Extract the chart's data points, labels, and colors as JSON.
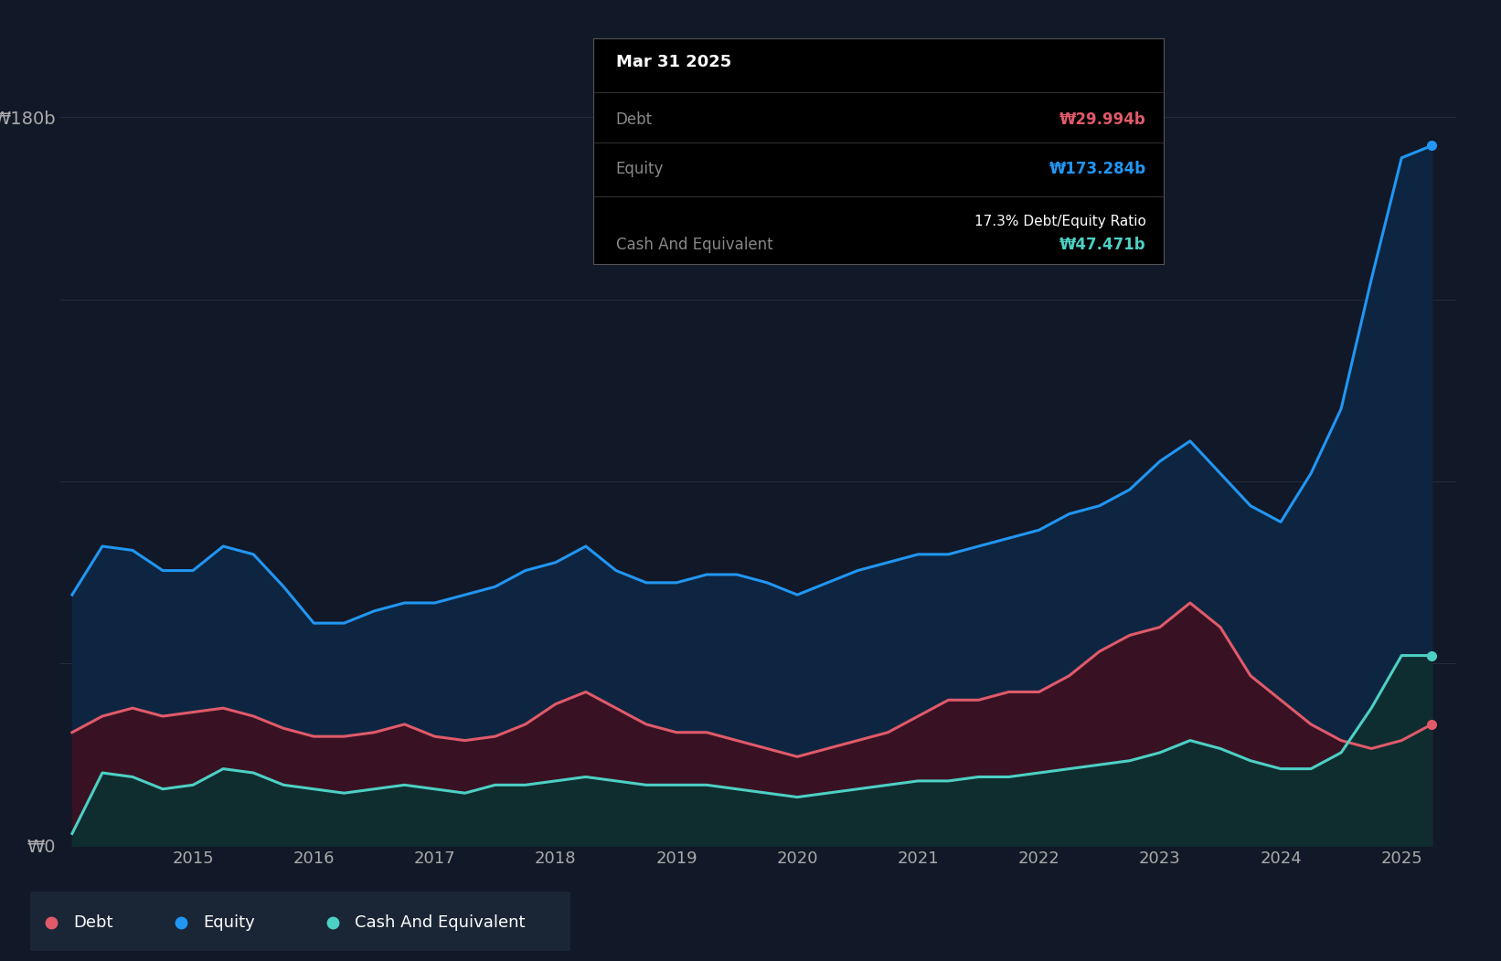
{
  "background_color": "#111827",
  "plot_bg_color": "#111827",
  "grid_color": "#263548",
  "ylim": [
    0,
    190
  ],
  "ytick_vals": [
    0,
    180
  ],
  "ytick_labels": [
    "₩0",
    "₩180b"
  ],
  "xlabel_years": [
    2015,
    2016,
    2017,
    2018,
    2019,
    2020,
    2021,
    2022,
    2023,
    2024,
    2025
  ],
  "debt_color": "#e05a6a",
  "equity_color": "#2196f3",
  "cash_color": "#4dd0c4",
  "dates": [
    2014.0,
    2014.25,
    2014.5,
    2014.75,
    2015.0,
    2015.25,
    2015.5,
    2015.75,
    2016.0,
    2016.25,
    2016.5,
    2016.75,
    2017.0,
    2017.25,
    2017.5,
    2017.75,
    2018.0,
    2018.25,
    2018.5,
    2018.75,
    2019.0,
    2019.25,
    2019.5,
    2019.75,
    2020.0,
    2020.25,
    2020.5,
    2020.75,
    2021.0,
    2021.25,
    2021.5,
    2021.75,
    2022.0,
    2022.25,
    2022.5,
    2022.75,
    2023.0,
    2023.25,
    2023.5,
    2023.75,
    2024.0,
    2024.25,
    2024.5,
    2024.75,
    2025.0,
    2025.25
  ],
  "equity": [
    62,
    74,
    73,
    68,
    68,
    74,
    72,
    64,
    55,
    55,
    58,
    60,
    60,
    62,
    64,
    68,
    70,
    74,
    68,
    65,
    65,
    67,
    67,
    65,
    62,
    65,
    68,
    70,
    72,
    72,
    74,
    76,
    78,
    82,
    84,
    88,
    95,
    100,
    92,
    84,
    80,
    92,
    108,
    140,
    170,
    173
  ],
  "debt": [
    28,
    32,
    34,
    32,
    33,
    34,
    32,
    29,
    27,
    27,
    28,
    30,
    27,
    26,
    27,
    30,
    35,
    38,
    34,
    30,
    28,
    28,
    26,
    24,
    22,
    24,
    26,
    28,
    32,
    36,
    36,
    38,
    38,
    42,
    48,
    52,
    54,
    60,
    54,
    42,
    36,
    30,
    26,
    24,
    26,
    30
  ],
  "cash": [
    3,
    18,
    17,
    14,
    15,
    19,
    18,
    15,
    14,
    13,
    14,
    15,
    14,
    13,
    15,
    15,
    16,
    17,
    16,
    15,
    15,
    15,
    14,
    13,
    12,
    13,
    14,
    15,
    16,
    16,
    17,
    17,
    18,
    19,
    20,
    21,
    23,
    26,
    24,
    21,
    19,
    19,
    23,
    34,
    47,
    47
  ],
  "tooltip": {
    "date": "Mar 31 2025",
    "debt_label": "Debt",
    "debt_value": "₩29.994b",
    "equity_label": "Equity",
    "equity_value": "₩173.284b",
    "ratio_text": "17.3% Debt/Equity Ratio",
    "cash_label": "Cash And Equivalent",
    "cash_value": "₩47.471b"
  },
  "legend": {
    "debt": "Debt",
    "equity": "Equity",
    "cash": "Cash And Equivalent"
  }
}
